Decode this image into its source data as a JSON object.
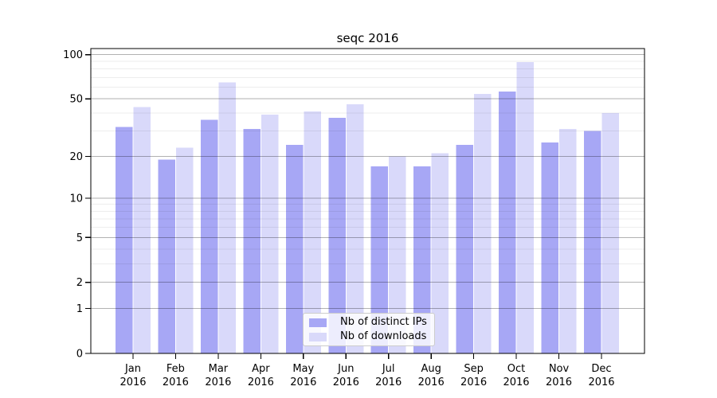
{
  "chart_data": {
    "type": "bar",
    "title": "seqc 2016",
    "yscale": "log1p",
    "ylim": [
      0,
      110
    ],
    "grid": true,
    "legend_position": "lower center",
    "categories": [
      "Jan",
      "Feb",
      "Mar",
      "Apr",
      "May",
      "Jun",
      "Jul",
      "Aug",
      "Sep",
      "Oct",
      "Nov",
      "Dec"
    ],
    "x_year": "2016",
    "y_major_ticks": [
      100,
      50,
      20,
      10,
      5,
      2,
      1,
      0
    ],
    "y_minor_ticks": [
      90,
      80,
      70,
      60,
      40,
      30
    ],
    "series": [
      {
        "name": "Nb of distinct IPs",
        "color": "#a7a7f5",
        "values": [
          32,
          19,
          36,
          31,
          24,
          37,
          17,
          17,
          24,
          56,
          25,
          30
        ]
      },
      {
        "name": "Nb of downloads",
        "color": "#d9d9fa",
        "values": [
          44,
          23,
          65,
          39,
          41,
          46,
          20,
          21,
          54,
          89,
          31,
          40
        ]
      }
    ]
  }
}
